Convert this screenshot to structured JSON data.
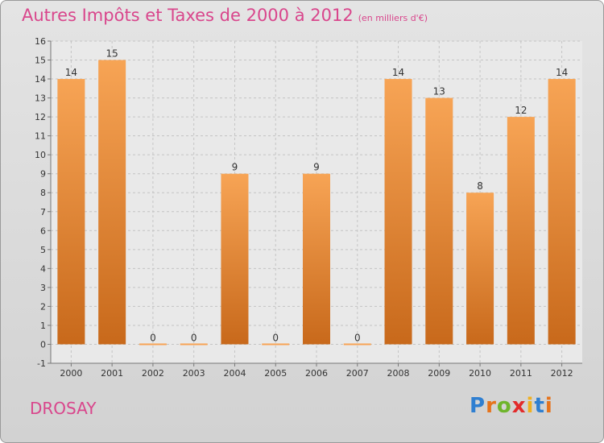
{
  "header": {
    "title": "Autres Impôts et Taxes de 2000 à 2012",
    "subtitle": "(en milliers d'€)"
  },
  "footer": {
    "city": "DROSAY",
    "logo_text": "Proxiti"
  },
  "colors": {
    "bar_top": "#f7a455",
    "bar_bottom": "#c8691b",
    "accent": "#d9468c",
    "logo_letters": [
      "#2f7fd1",
      "#e6731b",
      "#6fb52c",
      "#e22b2b",
      "#f0b020",
      "#2f7fd1",
      "#e6731b"
    ]
  },
  "chart_data": {
    "type": "bar",
    "categories": [
      "2000",
      "2001",
      "2002",
      "2003",
      "2004",
      "2005",
      "2006",
      "2007",
      "2008",
      "2009",
      "2010",
      "2011",
      "2012"
    ],
    "values": [
      14,
      15,
      0,
      0,
      9,
      0,
      9,
      0,
      14,
      13,
      8,
      12,
      14
    ],
    "data_labels": [
      "14",
      "15",
      "0",
      "0",
      "9",
      "0",
      "9",
      "0",
      "14",
      "13",
      "8",
      "12",
      "14"
    ],
    "y_ticks": [
      -1,
      0,
      1,
      2,
      3,
      4,
      5,
      6,
      7,
      8,
      9,
      10,
      11,
      12,
      13,
      14,
      15,
      16
    ],
    "ylim": [
      -1,
      16
    ],
    "grid": true,
    "xlabel": "",
    "ylabel": ""
  }
}
